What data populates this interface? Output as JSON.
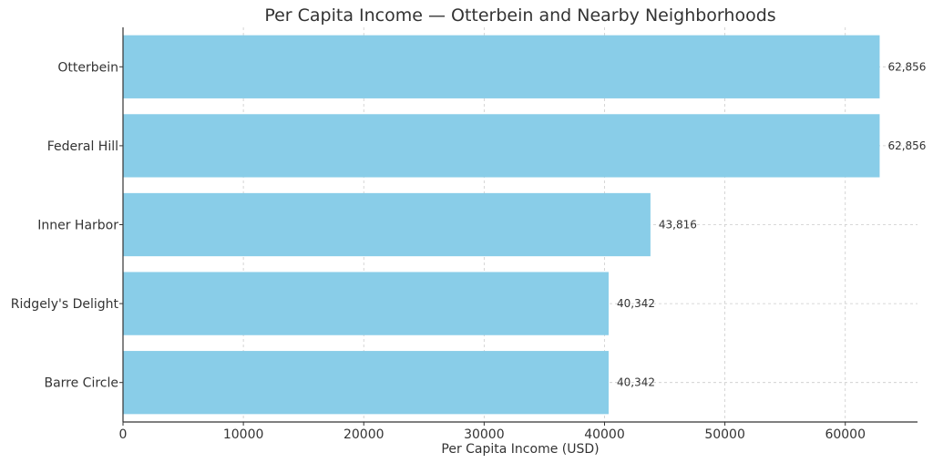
{
  "chart_data": {
    "type": "bar",
    "orientation": "horizontal",
    "title": "Per Capita Income — Otterbein and Nearby Neighborhoods",
    "xlabel": "Per Capita Income (USD)",
    "ylabel": "",
    "categories": [
      "Otterbein",
      "Federal Hill",
      "Inner Harbor",
      "Ridgely's Delight",
      "Barre Circle"
    ],
    "values": [
      62856,
      62856,
      43816,
      40342,
      40342
    ],
    "value_labels": [
      "62,856",
      "62,856",
      "43,816",
      "40,342",
      "40,342"
    ],
    "xlim": [
      0,
      66000
    ],
    "xticks": [
      0,
      10000,
      20000,
      30000,
      40000,
      50000,
      60000
    ],
    "xtick_labels": [
      "0",
      "10000",
      "20000",
      "30000",
      "40000",
      "50000",
      "60000"
    ],
    "grid": true,
    "bar_color": "#89CDE8"
  }
}
